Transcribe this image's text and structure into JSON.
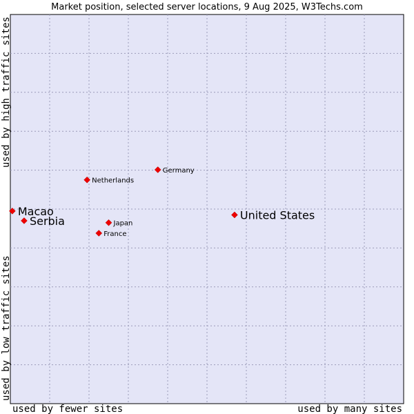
{
  "chart_data": {
    "type": "scatter",
    "title": "Market position, selected server locations, 9 Aug 2025, W3Techs.com",
    "xlabel_low": "used by fewer sites",
    "xlabel_high": "used by many sites",
    "ylabel_low": "used by low traffic sites",
    "ylabel_high": "used by high traffic sites",
    "xlim": [
      0,
      10
    ],
    "ylim": [
      0,
      10
    ],
    "grid": true,
    "background_color": "#e4e5f7",
    "marker_color": "#ee0000",
    "points": [
      {
        "name": "Macao",
        "x": 0.05,
        "y": 4.95,
        "emphasis": true
      },
      {
        "name": "Serbia",
        "x": 0.35,
        "y": 4.7,
        "emphasis": true
      },
      {
        "name": "United States",
        "x": 5.7,
        "y": 4.85,
        "emphasis": true
      },
      {
        "name": "Netherlands",
        "x": 1.95,
        "y": 5.75,
        "emphasis": false
      },
      {
        "name": "Germany",
        "x": 3.75,
        "y": 6.01,
        "emphasis": false
      },
      {
        "name": "Japan",
        "x": 2.5,
        "y": 4.65,
        "emphasis": false
      },
      {
        "name": "France",
        "x": 2.25,
        "y": 4.38,
        "emphasis": false
      }
    ]
  }
}
